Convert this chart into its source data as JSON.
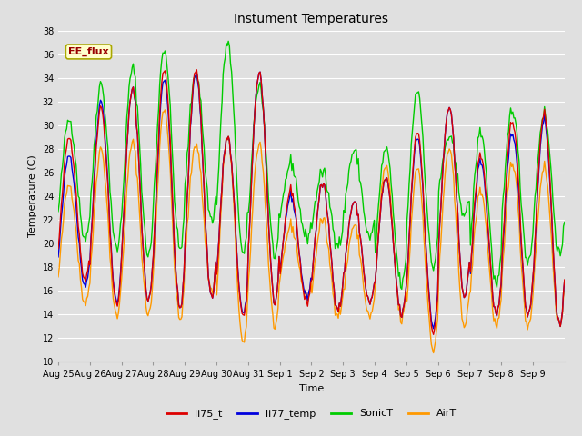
{
  "title": "Instument Temperatures",
  "xlabel": "Time",
  "ylabel": "Temperature (C)",
  "ylim": [
    10,
    38
  ],
  "yticks": [
    10,
    12,
    14,
    16,
    18,
    20,
    22,
    24,
    26,
    28,
    30,
    32,
    34,
    36,
    38
  ],
  "bg_color": "#e0e0e0",
  "grid_color": "#ffffff",
  "annotation_text": "EE_flux",
  "annotation_bg": "#ffffcc",
  "annotation_border": "#aaa800",
  "annotation_text_color": "#990000",
  "colors": {
    "li75_t": "#dd0000",
    "li77_temp": "#0000dd",
    "SonicT": "#00cc00",
    "AirT": "#ff9900"
  },
  "lw": 1.0,
  "x_tick_labels": [
    "Aug 25",
    "Aug 26",
    "Aug 27",
    "Aug 28",
    "Aug 29",
    "Aug 30",
    "Aug 31",
    "Sep 1",
    "Sep 2",
    "Sep 3",
    "Sep 4",
    "Sep 5",
    "Sep 6",
    "Sep 7",
    "Sep 8",
    "Sep 9"
  ],
  "title_fontsize": 10,
  "axis_fontsize": 8,
  "tick_fontsize": 7
}
